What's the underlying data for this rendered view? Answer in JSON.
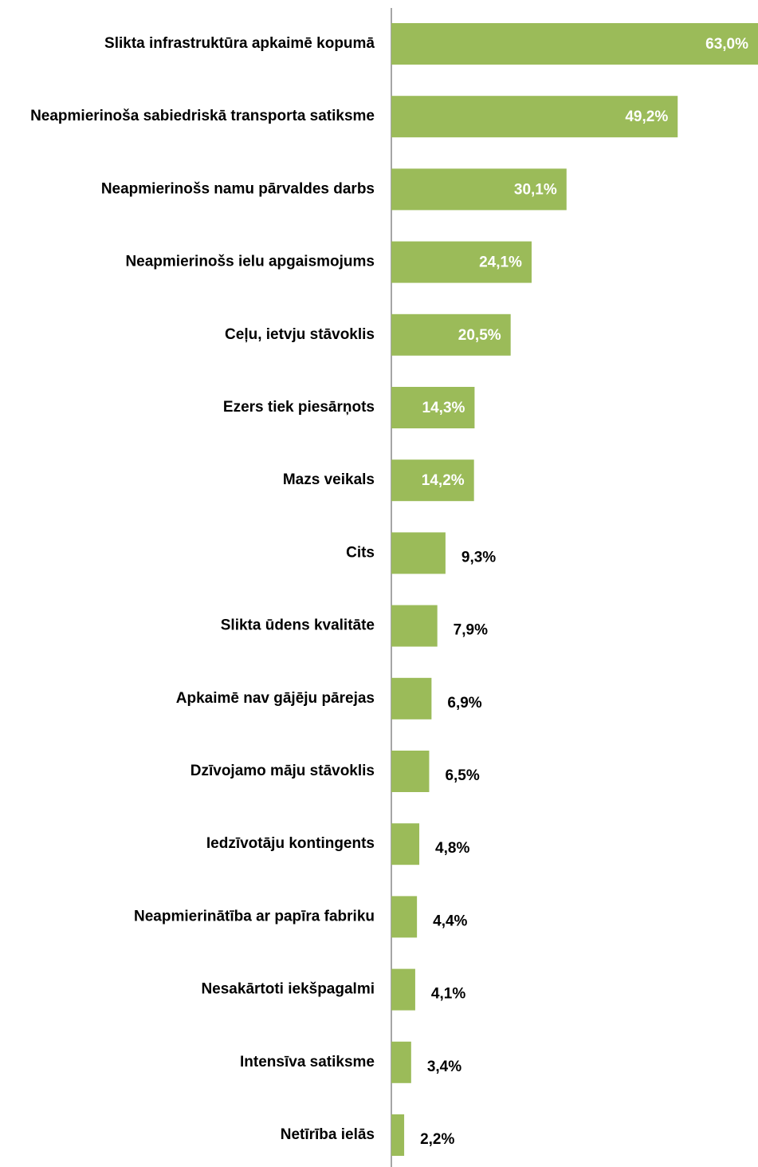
{
  "chart_data": {
    "type": "bar",
    "orientation": "horizontal",
    "categories": [
      "Slikta infrastruktūra apkaimē kopumā",
      "Neapmierinoša sabiedriskā transporta satiksme",
      "Neapmierinošs namu pārvaldes darbs",
      "Neapmierinošs ielu  apgaismojums",
      "Ceļu, ietvju stāvoklis",
      "Ezers tiek piesārņots",
      "Mazs veikals",
      "Cits",
      "Slikta ūdens kvalitāte",
      "Apkaimē nav gājēju pārejas",
      "Dzīvojamo māju stāvoklis",
      "Iedzīvotāju kontingents",
      "Neapmierinātība ar papīra fabriku",
      "Nesakārtoti iekšpagalmi",
      "Intensīva satiksme",
      "Netīrība ielās"
    ],
    "values": [
      63.0,
      49.2,
      30.1,
      24.1,
      20.5,
      14.3,
      14.2,
      9.3,
      7.9,
      6.9,
      6.5,
      4.8,
      4.4,
      4.1,
      3.4,
      2.2
    ],
    "value_labels": [
      "63,0%",
      "49,2%",
      "30,1%",
      "24,1%",
      "20,5%",
      "14,3%",
      "14,2%",
      "9,3%",
      "7,9%",
      "6,9%",
      "6,5%",
      "4,8%",
      "4,4%",
      "4,1%",
      "3,4%",
      "2,2%"
    ],
    "color": "#9bbb59",
    "xlim": [
      0,
      63
    ]
  }
}
